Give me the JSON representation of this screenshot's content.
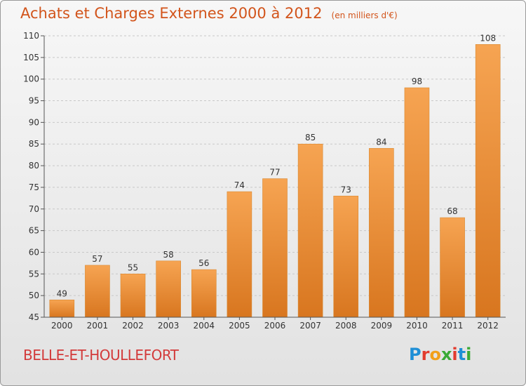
{
  "header": {
    "title": "Achats et Charges Externes 2000 à 2012",
    "unit": "(en milliers d'€)"
  },
  "footer": {
    "commune": "BELLE-ET-HOULLEFORT",
    "logo_text": "Proxiti",
    "logo_colors": [
      "#1f8fd6",
      "#e23b2e",
      "#f2a01a",
      "#3aaa35",
      "#e23b2e",
      "#1f8fd6",
      "#3aaa35"
    ]
  },
  "colors": {
    "bar_top": "#f6a452",
    "bar_bottom": "#d8761f",
    "text_accent": "#d2541b",
    "grid": "#c8c8c8",
    "axis_text": "#333333"
  },
  "chart_data": {
    "type": "bar",
    "title": "Achats et Charges Externes 2000 à 2012",
    "subtitle": "(en milliers d'€)",
    "categories": [
      "2000",
      "2001",
      "2002",
      "2003",
      "2004",
      "2005",
      "2006",
      "2007",
      "2008",
      "2009",
      "2010",
      "2011",
      "2012"
    ],
    "values": [
      49,
      57,
      55,
      58,
      56,
      74,
      77,
      85,
      73,
      84,
      98,
      68,
      108
    ],
    "ylim": [
      45,
      110
    ],
    "yticks": [
      45,
      50,
      55,
      60,
      65,
      70,
      75,
      80,
      85,
      90,
      95,
      100,
      105,
      110
    ],
    "grid": true,
    "data_labels": true
  }
}
